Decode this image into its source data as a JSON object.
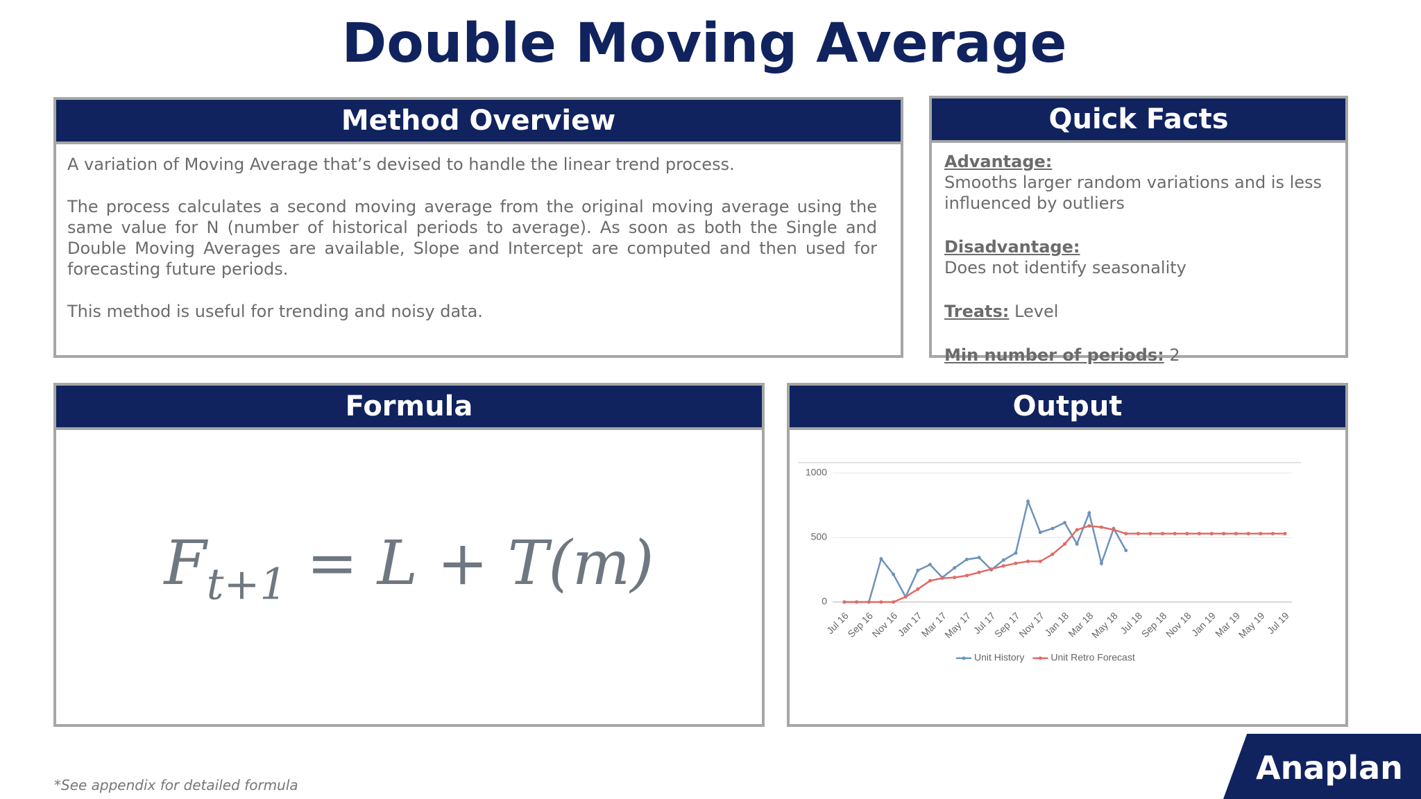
{
  "title": "Double Moving Average",
  "method_overview": {
    "heading": "Method Overview",
    "paragraphs": [
      "A variation of Moving Average that’s devised to handle the linear trend process.",
      "The process calculates a second moving average from the original moving average using the same value for N (number of historical periods to average). As soon as both the Single and Double Moving Averages are available, Slope and Intercept are computed and then used for forecasting future periods.",
      "This method is useful for trending and noisy data."
    ]
  },
  "quick_facts": {
    "heading": "Quick Facts",
    "items": [
      {
        "label": "Advantage:",
        "text": "Smooths larger random variations and is less influenced by outliers"
      },
      {
        "label": "Disadvantage:",
        "text": "Does not identify seasonality"
      },
      {
        "label": "Treats:",
        "text": "Level"
      },
      {
        "label": "Min number of periods:",
        "text": "2"
      }
    ]
  },
  "formula": {
    "heading": "Formula",
    "lhs": "F",
    "subscript": "t+1",
    "rhs": "= L + T(m)"
  },
  "output": {
    "heading": "Output"
  },
  "chart_data": {
    "type": "line",
    "categories": [
      "Jul 16",
      null,
      "Sep 16",
      null,
      "Nov 16",
      null,
      "Jan 17",
      null,
      "Mar 17",
      null,
      "May 17",
      null,
      "Jul 17",
      null,
      "Sep 17",
      null,
      "Nov 17",
      null,
      "Jan 18",
      null,
      "Mar 18",
      null,
      "May 18",
      null,
      "Jul 18",
      null,
      "Sep 18",
      null,
      "Nov 18",
      null,
      "Jan 19",
      null,
      "Mar 19",
      null,
      "May 19",
      null,
      "Jul 19"
    ],
    "series": [
      {
        "name": "Unit History",
        "color": "#6b93bd",
        "values": [
          0,
          0,
          0,
          335,
          215,
          40,
          245,
          290,
          190,
          265,
          330,
          345,
          250,
          325,
          380,
          780,
          540,
          570,
          615,
          450,
          690,
          300,
          570,
          400,
          null,
          null,
          null,
          null,
          null,
          null,
          null,
          null,
          null,
          null,
          null,
          null,
          null
        ]
      },
      {
        "name": "Unit Retro Forecast",
        "color": "#e06b66",
        "values": [
          0,
          0,
          0,
          0,
          0,
          40,
          100,
          165,
          185,
          190,
          205,
          230,
          255,
          280,
          300,
          315,
          315,
          370,
          450,
          560,
          590,
          580,
          560,
          530,
          530,
          530,
          530,
          530,
          530,
          530,
          530,
          530,
          530,
          530,
          530,
          530,
          530
        ]
      }
    ],
    "ylim": [
      0,
      1000
    ],
    "yticks": [
      0,
      500,
      1000
    ],
    "grid": true,
    "legend": "bottom"
  },
  "footnote": "*See appendix for detailed formula",
  "logo": "Anaplan"
}
